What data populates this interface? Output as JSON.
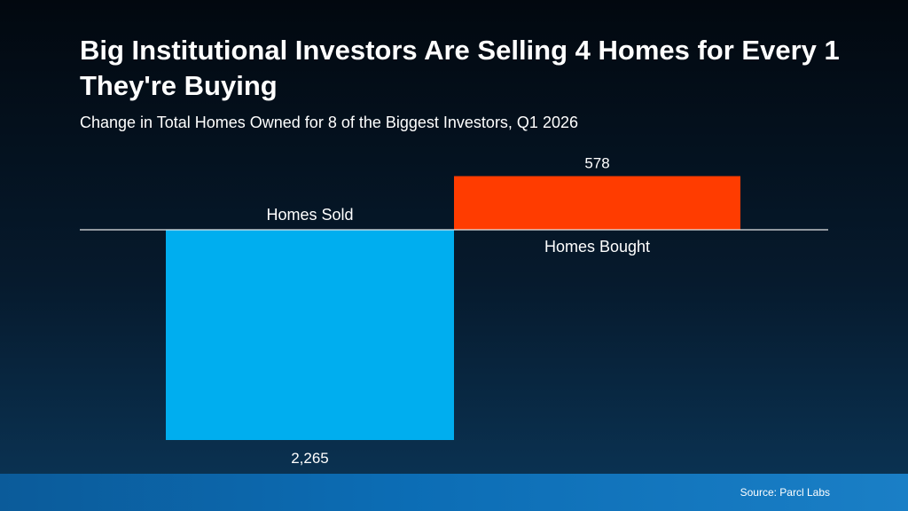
{
  "title": "Big Institutional Investors Are Selling 4 Homes for Every 1 They're Buying",
  "subtitle": "Change in Total Homes Owned for 8 of the Biggest Investors, Q1 2026",
  "source": "Source: Parcl Labs",
  "colors": {
    "sold": "#00aeef",
    "bought": "#ff3c00",
    "baseline": "#e6e6e6"
  },
  "chart_data": {
    "type": "bar",
    "categories": [
      "Homes Sold",
      "Homes Bought"
    ],
    "values": [
      -2265,
      578
    ],
    "data_labels": [
      "2,265",
      "578"
    ],
    "title": "Big Institutional Investors Are Selling 4 Homes for Every 1 They're Buying",
    "subtitle": "Change in Total Homes Owned for 8 of the Biggest Investors, Q1 2026",
    "xlabel": "",
    "ylabel": "",
    "grid": false,
    "legend": "none"
  }
}
